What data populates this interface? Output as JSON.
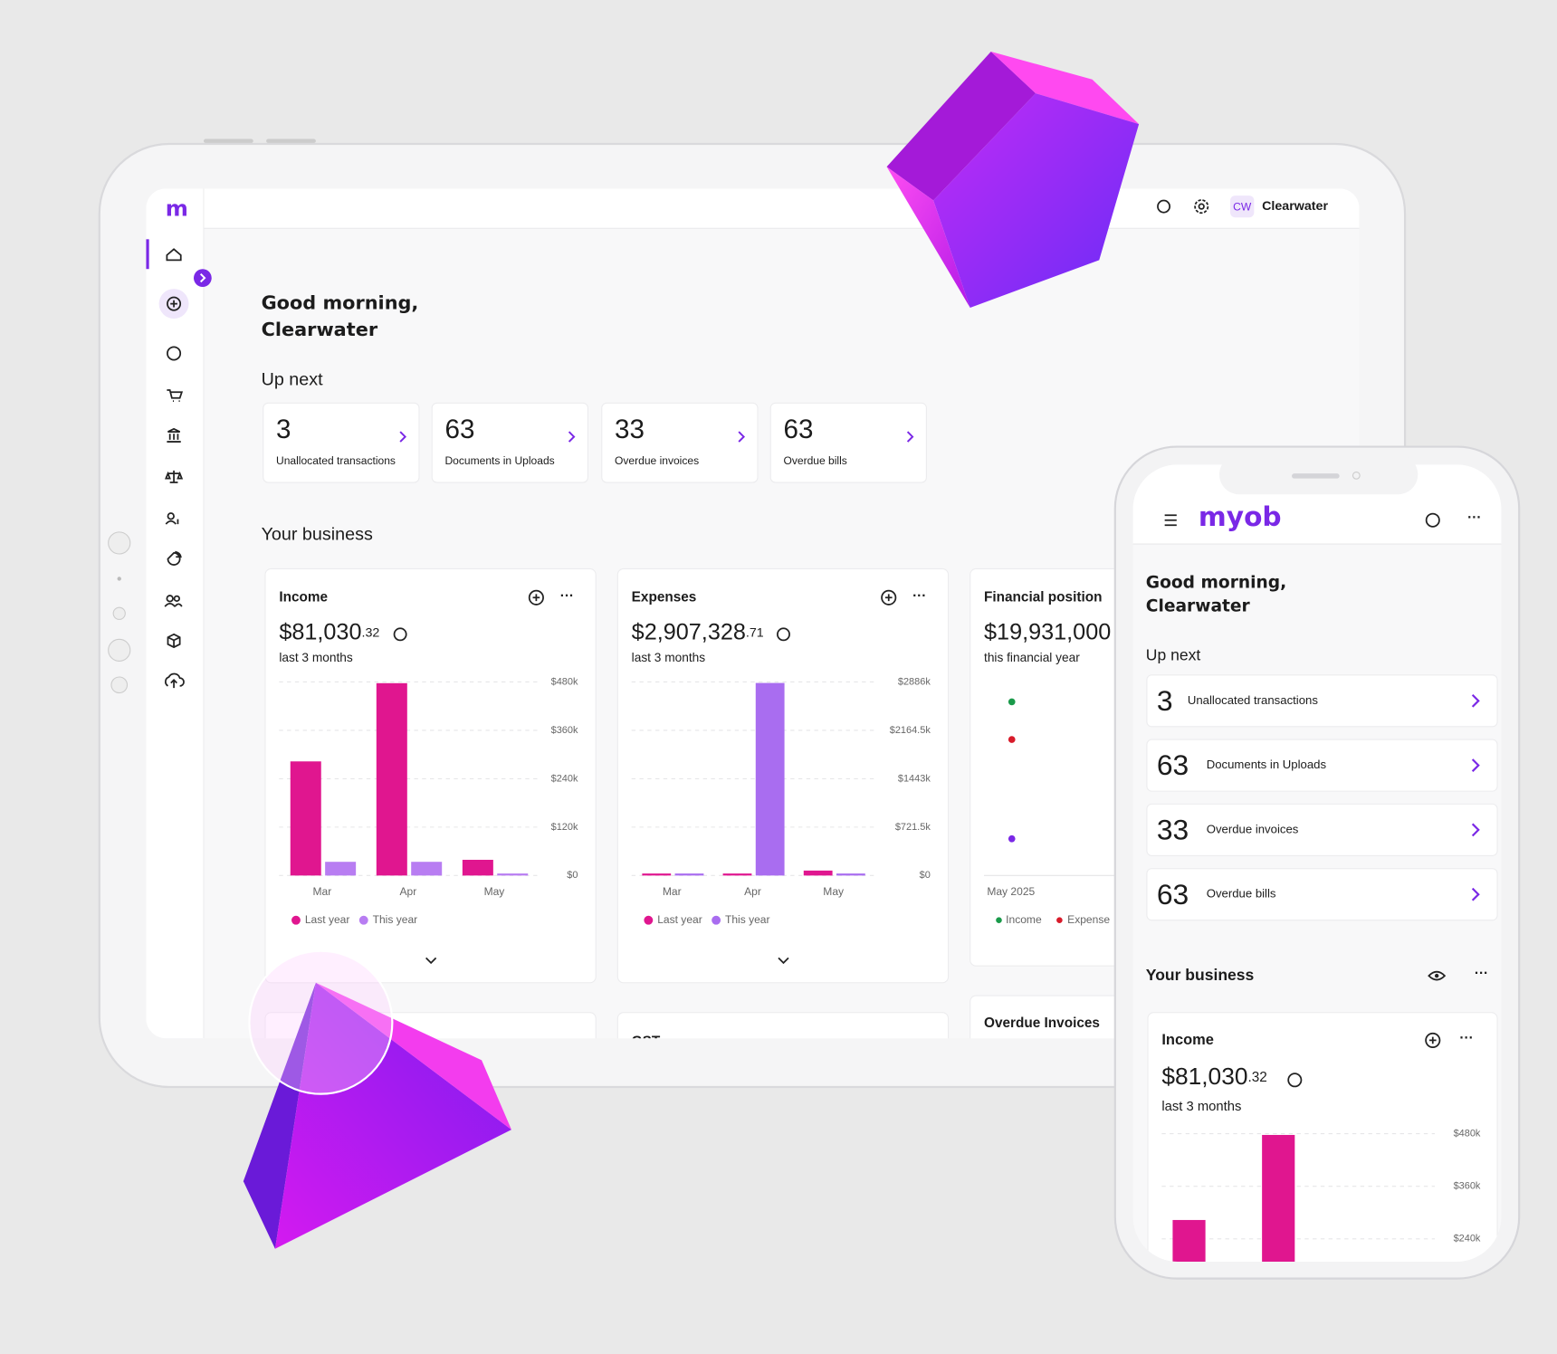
{
  "tablet": {
    "logo": "m",
    "account_initials": "CW",
    "account_name": "Clearwater",
    "greeting": [
      "Good morning,",
      "Clearwater"
    ],
    "up_next_title": "Up next",
    "up_next": [
      {
        "count": 3,
        "label": "Unallocated transactions"
      },
      {
        "count": 63,
        "label": "Documents in Uploads"
      },
      {
        "count": 33,
        "label": "Overdue invoices"
      },
      {
        "count": 63,
        "label": "Overdue bills"
      }
    ],
    "business_title": "Your business",
    "cards": [
      {
        "amount": "$81,030",
        "cents": ".32",
        "period": "last 3 months"
      },
      {
        "amount": "$2,907,328",
        "cents": ".71",
        "period": "last 3 months"
      }
    ],
    "financial_position": {
      "title": "Financial position",
      "amount": "$19,931,000",
      "period": "this financial year",
      "date": "May 2025",
      "legend": [
        "Income",
        "Expense"
      ]
    },
    "more_cards": [
      "GST",
      "Overdue Invoices"
    ]
  },
  "phone": {
    "logo": "myob",
    "greeting": [
      "Good morning,",
      "Clearwater"
    ],
    "up_next_title": "Up next",
    "up_next": [
      {
        "count": 3,
        "label": "Unallocated transactions"
      },
      {
        "count": 63,
        "label": "Documents in Uploads"
      },
      {
        "count": 33,
        "label": "Overdue invoices"
      },
      {
        "count": 63,
        "label": "Overdue bills"
      }
    ],
    "business_title": "Your business",
    "income": {
      "amount": "$81,030",
      "cents": ".32",
      "period": "last 3 months"
    }
  },
  "chart_data": [
    {
      "type": "bar",
      "title": "Income",
      "categories": [
        "Mar",
        "Apr",
        "May"
      ],
      "series": [
        {
          "name": "Last year",
          "color": "#e0168f",
          "values": [
            283,
            477,
            39
          ]
        },
        {
          "name": "This year",
          "color": "#b87df2",
          "values": [
            34,
            34,
            5
          ]
        }
      ],
      "ylim": [
        0,
        480
      ],
      "yticks": [
        {
          "value": 0,
          "label": "$0"
        },
        {
          "value": 120,
          "label": "$120k"
        },
        {
          "value": 240,
          "label": "$240k"
        },
        {
          "value": 360,
          "label": "$360k"
        },
        {
          "value": 480,
          "label": "$480k"
        }
      ],
      "grid": true
    },
    {
      "type": "bar",
      "title": "Expenses",
      "categories": [
        "Mar",
        "Apr",
        "May"
      ],
      "series": [
        {
          "name": "Last year",
          "color": "#e0168f",
          "values": [
            30,
            30,
            74
          ]
        },
        {
          "name": "This year",
          "color": "#a96df0",
          "values": [
            30,
            2871,
            30
          ]
        }
      ],
      "ylim": [
        0,
        2886
      ],
      "yticks": [
        {
          "value": 0,
          "label": "$0"
        },
        {
          "value": 721.5,
          "label": "$721.5k"
        },
        {
          "value": 1443,
          "label": "$1443k"
        },
        {
          "value": 2164.5,
          "label": "$2164.5k"
        },
        {
          "value": 2886,
          "label": "$2886k"
        }
      ],
      "grid": true
    }
  ]
}
